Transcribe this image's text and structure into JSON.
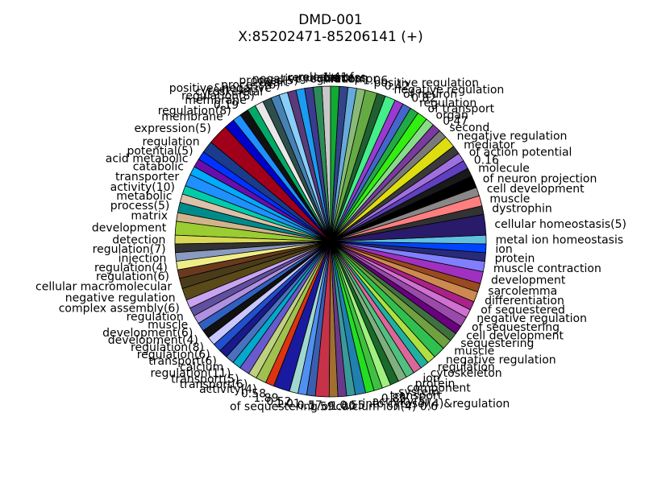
{
  "chart_data": {
    "type": "pie",
    "title_line1": "DMD-001",
    "title_line2": "X:85202471-85206141 (+)",
    "slices": [
      {
        "label": "release of",
        "value": 1.0,
        "color": "#c8c8c8"
      },
      {
        "label": "regulation",
        "value": 1.0,
        "color": "#2e8b57"
      },
      {
        "label": "negative regulation",
        "value": 1.0,
        "color": "#3b3b8f"
      },
      {
        "label": "process(5)",
        "value": 1.0,
        "color": "#1a9cf0"
      },
      {
        "label": "heart",
        "value": 1.0,
        "color": "#5b3a7a"
      },
      {
        "label": "process(6)",
        "value": 1.0,
        "color": "#87cefa"
      },
      {
        "label": "positive&negative",
        "value": 1.0,
        "color": "#4682b4"
      },
      {
        "label": "cytoskeletal",
        "value": 1.0,
        "color": "#2f4f4f"
      },
      {
        "label": "regulation(8)",
        "value": 1.0,
        "color": "#e8e8e8"
      },
      {
        "label": "membrane",
        "value": 1.0,
        "color": "#00aa66"
      },
      {
        "label": "0.19",
        "value": 1.0,
        "color": "#111111"
      },
      {
        "label": "regulation(8)",
        "value": 1.0,
        "color": "#1e90ff"
      },
      {
        "label": "membrane",
        "value": 1.2,
        "color": "#0000cd"
      },
      {
        "label": "expression(5)",
        "value": 2.4,
        "color": "#a0001a"
      },
      {
        "label": "regulation",
        "value": 1.4,
        "color": "#1b3b8c"
      },
      {
        "label": "potential(5)",
        "value": 1.0,
        "color": "#0033ff"
      },
      {
        "label": "acid metabolic",
        "value": 1.0,
        "color": "#6a0dad"
      },
      {
        "label": "catabolic",
        "value": 1.0,
        "color": "#00aaff"
      },
      {
        "label": "transporter",
        "value": 1.4,
        "color": "#1e90ff"
      },
      {
        "label": "activity(10)",
        "value": 1.0,
        "color": "#00ccaa"
      },
      {
        "label": "metabolic",
        "value": 1.0,
        "color": "#ddc0a8"
      },
      {
        "label": "process(5)",
        "value": 1.2,
        "color": "#008b8b"
      },
      {
        "label": "matrix",
        "value": 1.0,
        "color": "#d2b48c"
      },
      {
        "label": "development",
        "value": 1.6,
        "color": "#9acd32"
      },
      {
        "label": "detection",
        "value": 1.0,
        "color": "#d8d85a"
      },
      {
        "label": "regulation(7)",
        "value": 1.0,
        "color": "#333333"
      },
      {
        "label": "injection",
        "value": 1.0,
        "color": "#8a9ac0"
      },
      {
        "label": "regulation(4)",
        "value": 1.0,
        "color": "#eeee88"
      },
      {
        "label": "regulation(6)",
        "value": 1.0,
        "color": "#6b3a1e"
      },
      {
        "label": "cellular macromolecular",
        "value": 1.2,
        "color": "#4a3b1a"
      },
      {
        "label": "negative regulation",
        "value": 1.4,
        "color": "#5a4a1a"
      },
      {
        "label": "complex assembly(6)",
        "value": 1.0,
        "color": "#c8a4f0"
      },
      {
        "label": "regulation",
        "value": 1.0,
        "color": "#6050a0"
      },
      {
        "label": "muscle",
        "value": 1.0,
        "color": "#b090e0"
      },
      {
        "label": "development(6)",
        "value": 1.0,
        "color": "#3060c0"
      },
      {
        "label": "development(4)",
        "value": 1.0,
        "color": "#111111"
      },
      {
        "label": "regulation(8)",
        "value": 1.0,
        "color": "#c8c8ff"
      },
      {
        "label": "regulation(6)",
        "value": 1.0,
        "color": "#2050d0"
      },
      {
        "label": "transport(6)",
        "value": 1.0,
        "color": "#1a1a8c"
      },
      {
        "label": "calcium",
        "value": 1.0,
        "color": "#4a70c0"
      },
      {
        "label": "regulation(11)",
        "value": 1.0,
        "color": "#00aacc"
      },
      {
        "label": "transport(5)",
        "value": 1.2,
        "color": "#6a5acd"
      },
      {
        "label": "transport(6)",
        "value": 1.0,
        "color": "#bfd080"
      },
      {
        "label": "activity(4)",
        "value": 1.2,
        "color": "#a0c050"
      },
      {
        "label": "0.58",
        "value": 1.0,
        "color": "#dd3311"
      },
      {
        "label": "1.89",
        "value": 1.89,
        "color": "#1a1aa0"
      },
      {
        "label": "0.52",
        "value": 1.0,
        "color": "#a0d8d0"
      },
      {
        "label": "1.01",
        "value": 1.01,
        "color": "#5090f0"
      },
      {
        "label": "0.57",
        "value": 1.0,
        "color": "#3a5fb0"
      },
      {
        "label": "1.59",
        "value": 1.59,
        "color": "#c83248"
      },
      {
        "label": "of sequestering of calcium ion(4) 0.6",
        "value": 1.0,
        "color": "#a07030"
      },
      {
        "label": "1.00",
        "value": 1.0,
        "color": "#6a3a8a"
      },
      {
        "label": "0.55",
        "value": 1.0,
        "color": "#3a9a9a"
      },
      {
        "label": "into cytosol(4)&regulation",
        "value": 1.2,
        "color": "#2080b0"
      },
      {
        "label": "activity(5)",
        "value": 1.0,
        "color": "#22dd22"
      },
      {
        "label": "0.85",
        "value": 1.0,
        "color": "#40c040"
      },
      {
        "label": "transport",
        "value": 1.0,
        "color": "#a0f080"
      },
      {
        "label": "system",
        "value": 1.0,
        "color": "#1a6a2a"
      },
      {
        "label": "component",
        "value": 1.0,
        "color": "#80b080"
      },
      {
        "label": "protein",
        "value": 1.0,
        "color": "#50c080"
      },
      {
        "label": "ion",
        "value": 1.0,
        "color": "#dd6699"
      },
      {
        "label": "cytoskeleton",
        "value": 1.0,
        "color": "#20b0a0"
      },
      {
        "label": "regulation",
        "value": 1.0,
        "color": "#b0e040"
      },
      {
        "label": "negative regulation",
        "value": 1.4,
        "color": "#30c050"
      },
      {
        "label": "muscle",
        "value": 1.2,
        "color": "#70a040"
      },
      {
        "label": "sequestering",
        "value": 1.0,
        "color": "#407040"
      },
      {
        "label": "cell development",
        "value": 1.0,
        "color": "#6a0080"
      },
      {
        "label": "of sequestering",
        "value": 1.2,
        "color": "#9a4aaa"
      },
      {
        "label": "negative regulation",
        "value": 1.0,
        "color": "#d070d0"
      },
      {
        "label": "of sequestered",
        "value": 1.0,
        "color": "#aa2288"
      },
      {
        "label": "differentiation",
        "value": 1.2,
        "color": "#cc8a50"
      },
      {
        "label": "sarcolemma",
        "value": 1.0,
        "color": "#9a4a20"
      },
      {
        "label": "development",
        "value": 1.4,
        "color": "#a030c0"
      },
      {
        "label": "muscle contraction",
        "value": 1.2,
        "color": "#8080ff"
      },
      {
        "label": "protein",
        "value": 1.0,
        "color": "#2a2a7a"
      },
      {
        "label": "ion",
        "value": 1.0,
        "color": "#0044ff"
      },
      {
        "label": "metal ion homeostasis",
        "value": 1.0,
        "color": "#60c0e0"
      },
      {
        "label": "cellular homeostasis(5)",
        "value": 2.4,
        "color": "#2a1a6a"
      },
      {
        "label": "dystrophin",
        "value": 1.0,
        "color": "#333333"
      },
      {
        "label": "muscle",
        "value": 1.2,
        "color": "#ff7f7f"
      },
      {
        "label": "cell development",
        "value": 1.0,
        "color": "#888888"
      },
      {
        "label": "of neuron projection",
        "value": 1.4,
        "color": "#000000"
      },
      {
        "label": "molecule",
        "value": 1.0,
        "color": "#1a1a1a"
      },
      {
        "label": "0.16",
        "value": 1.0,
        "color": "#6040c0"
      },
      {
        "label": "of action potential",
        "value": 1.0,
        "color": "#a070e0"
      },
      {
        "label": "mediator",
        "value": 1.0,
        "color": "#3a3a3a"
      },
      {
        "label": "negative regulation",
        "value": 1.4,
        "color": "#dddd11"
      },
      {
        "label": "second",
        "value": 1.0,
        "color": "#7a7a7a"
      },
      {
        "label": "0.47",
        "value": 1.0,
        "color": "#7a3aa0"
      },
      {
        "label": "organ",
        "value": 1.0,
        "color": "#88dd88"
      },
      {
        "label": "of transport",
        "value": 1.2,
        "color": "#33ee11"
      },
      {
        "label": "regulation",
        "value": 1.0,
        "color": "#22aa44"
      },
      {
        "label": "0.82",
        "value": 1.0,
        "color": "#4466cc"
      },
      {
        "label": "of neuron",
        "value": 1.0,
        "color": "#9a3ad0"
      },
      {
        "label": "negative regulation",
        "value": 1.2,
        "color": "#44ee88"
      },
      {
        "label": "0.42",
        "value": 1.0,
        "color": "#206030"
      },
      {
        "label": "positive regulation",
        "value": 1.4,
        "color": "#66aa44"
      },
      {
        "label": "1.06",
        "value": 1.0,
        "color": "#88bb77"
      },
      {
        "label": "receptor",
        "value": 1.0,
        "color": "#66aadd"
      },
      {
        "label": "process",
        "value": 1.0,
        "color": "#334488"
      },
      {
        "label": "1.41",
        "value": 1.0,
        "color": "#11aa33"
      }
    ]
  }
}
